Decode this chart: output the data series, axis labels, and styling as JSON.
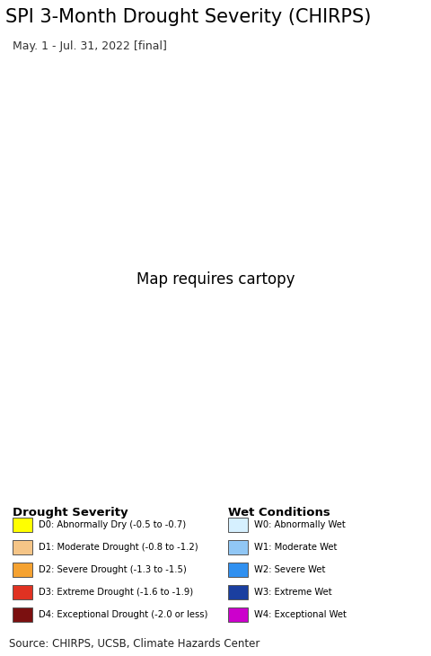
{
  "title": "SPI 3-Month Drought Severity (CHIRPS)",
  "subtitle": "May. 1 - Jul. 31, 2022 [final]",
  "source_text": "Source: CHIRPS, UCSB, Climate Hazards Center",
  "title_fontsize": 15,
  "subtitle_fontsize": 9,
  "source_fontsize": 8.5,
  "bg_color": "#ffffff",
  "map_water_color": "#b2e8f0",
  "map_land_color": "#e8e8e8",
  "map_nodata_color": "#f0f0f0",
  "legend_bg_color": "#f0f0f0",
  "drought_labels": [
    "D0: Abnormally Dry (-0.5 to -0.7)",
    "D1: Moderate Drought (-0.8 to -1.2)",
    "D2: Severe Drought (-1.3 to -1.5)",
    "D3: Extreme Drought (-1.6 to -1.9)",
    "D4: Exceptional Drought (-2.0 or less)"
  ],
  "drought_colors": [
    "#ffff00",
    "#f5c587",
    "#f5a231",
    "#e03222",
    "#7b1010"
  ],
  "wet_labels": [
    "W0: Abnormally Wet",
    "W1: Moderate Wet",
    "W2: Severe Wet",
    "W3: Extreme Wet",
    "W4: Exceptional Wet"
  ],
  "wet_colors": [
    "#d6f0ff",
    "#91c7f5",
    "#3090f0",
    "#1a3fa0",
    "#cc00cc"
  ],
  "drought_section_title": "Drought Severity",
  "wet_section_title": "Wet Conditions",
  "map_extent": [
    -82,
    -34,
    -23,
    13
  ],
  "fig_width": 4.8,
  "fig_height": 7.3,
  "dpi": 100
}
